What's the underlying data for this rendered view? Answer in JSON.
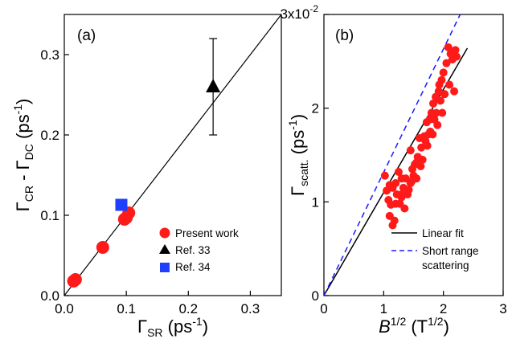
{
  "chart_data": [
    {
      "type": "scatter",
      "panel_label": "(a)",
      "xlabel": {
        "main": "Γ",
        "sub": "SR",
        "unit_pre": " (ps",
        "unit_sup": "-1",
        "unit_post": ")"
      },
      "ylabel": {
        "main": "Γ",
        "sub1": "CR",
        "mid": " - Γ",
        "sub2": "DC",
        "unit_pre": " (ps",
        "unit_sup": "-1",
        "unit_post": ")"
      },
      "xlim": [
        0,
        0.35
      ],
      "ylim": [
        0,
        0.35
      ],
      "xticks": [
        0.0,
        0.1,
        0.2,
        0.3
      ],
      "xtick_labels": [
        "0.0",
        "0.1",
        "0.2",
        "0.3"
      ],
      "yticks": [
        0.0,
        0.1,
        0.2,
        0.3
      ],
      "ytick_labels": [
        "0.0",
        "0.1",
        "0.2",
        "0.3"
      ],
      "line": {
        "name": "",
        "x": [
          0,
          0.35
        ],
        "y": [
          0,
          0.35
        ],
        "color": "#000000"
      },
      "series": [
        {
          "name": "Present work",
          "marker": "circle",
          "color": "#ff1a1a",
          "x": [
            0.015,
            0.018,
            0.062,
            0.097,
            0.1,
            0.104
          ],
          "y": [
            0.018,
            0.02,
            0.06,
            0.095,
            0.097,
            0.103
          ]
        },
        {
          "name": "Ref. 33",
          "marker": "triangle",
          "color": "#000000",
          "x": [
            0.24
          ],
          "y": [
            0.26
          ],
          "yerr": [
            0.06
          ]
        },
        {
          "name": "Ref. 34",
          "marker": "square",
          "color": "#1f3fff",
          "x": [
            0.092
          ],
          "y": [
            0.113
          ]
        }
      ],
      "legend_position": "bottom-right",
      "grid": false
    },
    {
      "type": "scatter",
      "panel_label": "(b)",
      "xlabel": {
        "main": "B",
        "sup": "1/2",
        "unit_pre": " (T",
        "unit_sup": "1/2",
        "unit_post": ")"
      },
      "ylabel": {
        "main": "Γ",
        "sub": "scatt.",
        "unit_pre": " (ps",
        "unit_sup": "-1",
        "unit_post": ")"
      },
      "xlim": [
        0,
        3
      ],
      "ylim": [
        0,
        0.03
      ],
      "xticks": [
        0,
        1,
        2,
        3
      ],
      "xtick_labels": [
        "0",
        "1",
        "2",
        "3"
      ],
      "yticks": [
        0,
        0.01,
        0.02,
        0.03
      ],
      "ytick_labels": [
        "0",
        "1",
        "2",
        ""
      ],
      "ytop_label": {
        "base": "3x10",
        "exp": "-2"
      },
      "series": [
        {
          "name": "",
          "marker": "circle",
          "color": "#ff1a1a",
          "x": [
            1.02,
            1.05,
            1.08,
            1.1,
            1.12,
            1.15,
            1.15,
            1.18,
            1.2,
            1.22,
            1.25,
            1.27,
            1.3,
            1.3,
            1.33,
            1.35,
            1.37,
            1.4,
            1.42,
            1.45,
            1.47,
            1.48,
            1.5,
            1.52,
            1.55,
            1.57,
            1.6,
            1.62,
            1.63,
            1.65,
            1.68,
            1.7,
            1.72,
            1.73,
            1.75,
            1.77,
            1.78,
            1.8,
            1.82,
            1.83,
            1.85,
            1.87,
            1.88,
            1.9,
            1.92,
            1.93,
            1.95,
            1.97,
            1.98,
            2.0,
            2.02,
            2.05,
            2.08,
            2.1,
            2.12,
            2.15,
            2.18,
            2.2,
            2.22,
            1.1,
            1.2,
            1.3,
            1.45,
            1.55
          ],
          "y": [
            0.0128,
            0.0112,
            0.0102,
            0.0118,
            0.0097,
            0.0075,
            0.0115,
            0.008,
            0.012,
            0.0108,
            0.0132,
            0.0098,
            0.0108,
            0.0125,
            0.0115,
            0.0093,
            0.0125,
            0.0108,
            0.0113,
            0.0155,
            0.0122,
            0.0135,
            0.0128,
            0.014,
            0.0125,
            0.0148,
            0.0168,
            0.0138,
            0.0158,
            0.0145,
            0.017,
            0.0165,
            0.0185,
            0.016,
            0.0172,
            0.0188,
            0.0175,
            0.0195,
            0.0172,
            0.0205,
            0.0188,
            0.0212,
            0.0195,
            0.0182,
            0.0218,
            0.0225,
            0.0208,
            0.023,
            0.0195,
            0.0238,
            0.0215,
            0.0248,
            0.0265,
            0.0225,
            0.0258,
            0.0252,
            0.0218,
            0.0262,
            0.0255,
            0.0085,
            0.0098,
            0.0105,
            0.012,
            0.0142
          ]
        }
      ],
      "lines": [
        {
          "name": "Linear fit",
          "style": "solid",
          "color": "#000000",
          "x": [
            0,
            2.4
          ],
          "y": [
            0,
            0.0264
          ]
        },
        {
          "name": "Short range scattering",
          "style": "dashed",
          "color": "#1a1aff",
          "x": [
            0,
            2.28
          ],
          "y": [
            0,
            0.03
          ]
        }
      ],
      "legend_entries": [
        {
          "label": [
            "Linear fit"
          ],
          "style": "solid",
          "color": "#000000"
        },
        {
          "label": [
            "Short range",
            "scattering"
          ],
          "style": "dashed",
          "color": "#1a1aff"
        }
      ],
      "legend_position": "bottom-right",
      "grid": false
    }
  ]
}
